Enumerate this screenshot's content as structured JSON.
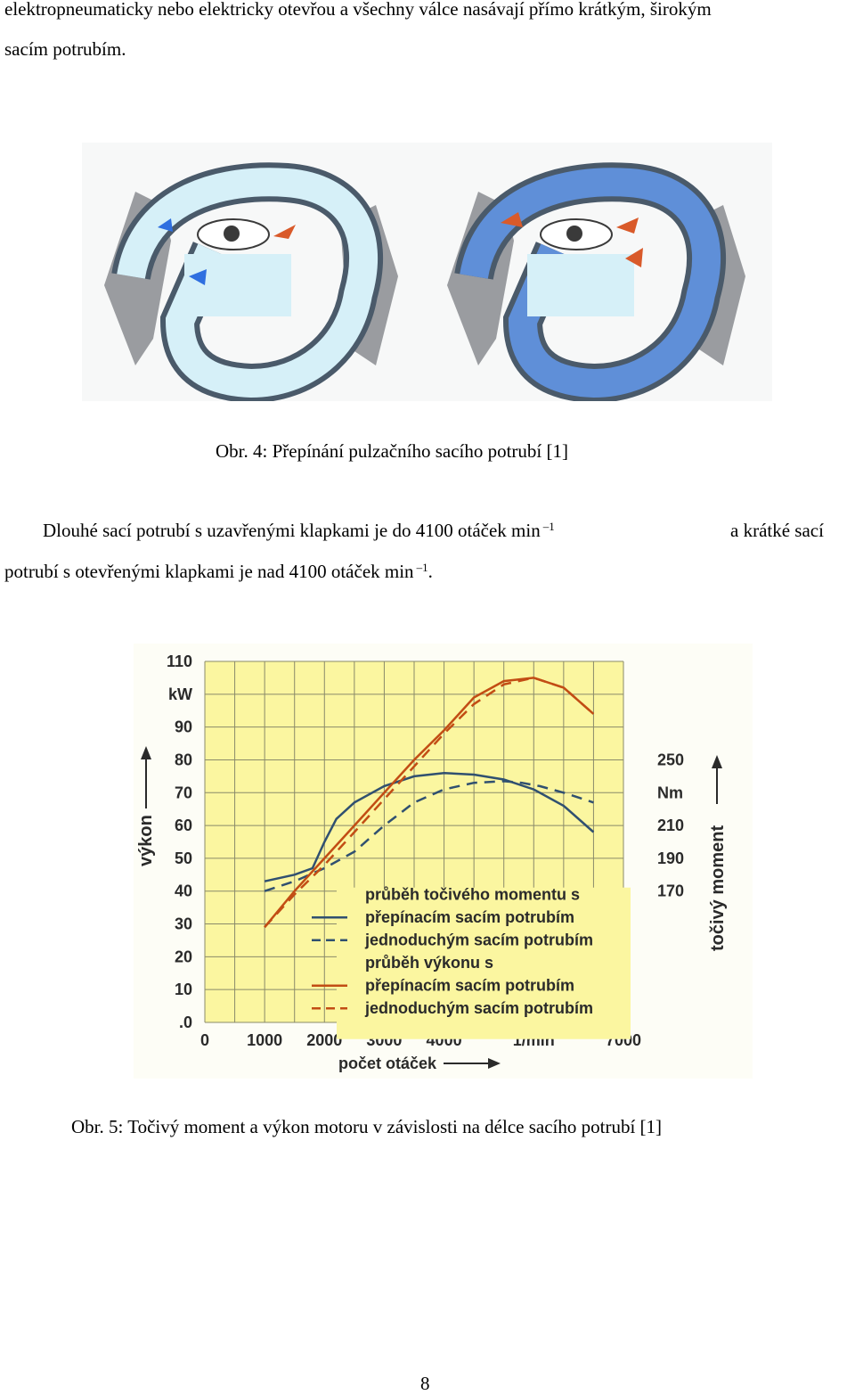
{
  "text": {
    "intro_line1": "elektropneumaticky nebo elektricky otevřou a všechny válce nasávají přímo krátkým, širokým",
    "intro_line2": "sacím potrubím.",
    "caption4": "Obr. 4: Přepínání pulzačního sacího potrubí [1]",
    "para_line1_a": "Dlouhé sací potrubí s uzavřenými klapkami je do 4100 otáček min",
    "para_line1_sup": "–1",
    "para_line1_b": "a krátké sací",
    "para_line2_a": "potrubí s otevřenými klapkami je nad 4100 otáček min",
    "para_line2_sup": "–1",
    "para_line2_b": ".",
    "caption5": "Obr. 5: Točivý moment a výkon motoru v závislosti na délce sacího potrubí [1]",
    "page_number": "8"
  },
  "colors": {
    "chart_bg": "#fbf6a0",
    "grid": "#8a8a6a",
    "torque_curve": "#305070",
    "power_curve": "#c24d14",
    "pipe_fill": "#d6f0f8",
    "pipe_dark_fill": "#5f8fd8",
    "engine_grey": "#9a9ca0"
  },
  "chart_data": {
    "type": "line",
    "title": "",
    "xlabel": "počet otáček",
    "x_unit": "1/min",
    "x_ticks": [
      "0",
      "1000",
      "2000",
      "3000",
      "4000",
      "1/min",
      "7000"
    ],
    "xlim": [
      0,
      7000
    ],
    "ylabel_left": "výkon",
    "ylabel_left_unit": "kW",
    "y_ticks_left": [
      "110",
      "kW",
      "90",
      "80",
      "70",
      "60",
      "50",
      "40",
      "30",
      "20",
      "10",
      ".0"
    ],
    "ylim_left": [
      0,
      110
    ],
    "ylabel_right": "točivý moment",
    "ylabel_right_unit": "Nm",
    "y_ticks_right": [
      "250",
      "Nm",
      "210",
      "190",
      "170"
    ],
    "grid": true,
    "legend_position": "lower-right",
    "legend": [
      {
        "label": "průběh točivého momentu s",
        "style": "none"
      },
      {
        "label": "přepínacím sacím potrubím",
        "style": "solid",
        "color": "#305070"
      },
      {
        "label": "jednoduchým sacím potrubím",
        "style": "dashed",
        "color": "#305070"
      },
      {
        "label": "průběh výkonu s",
        "style": "none"
      },
      {
        "label": "přepínacím sacím potrubím",
        "style": "solid",
        "color": "#c24d14"
      },
      {
        "label": "jednoduchým sacím potrubím",
        "style": "dashed",
        "color": "#c24d14"
      }
    ],
    "series": [
      {
        "color": "#305070",
        "dash": false,
        "x": [
          1000,
          1500,
          1800,
          2000,
          2200,
          2500,
          3000,
          3500,
          4000,
          4500,
          5000,
          5500,
          6000,
          6500
        ],
        "y": [
          43,
          45,
          47,
          55,
          62,
          67,
          72,
          75,
          76,
          75.5,
          74,
          71,
          66,
          58
        ]
      },
      {
        "color": "#305070",
        "dash": true,
        "x": [
          1000,
          1500,
          2000,
          2500,
          3000,
          3500,
          4000,
          4500,
          5000,
          5300,
          5600,
          6000,
          6500
        ],
        "y": [
          40,
          43,
          47,
          52,
          60,
          67,
          71,
          73,
          73.5,
          73,
          72,
          70,
          67
        ]
      },
      {
        "color": "#c24d14",
        "dash": false,
        "x": [
          1000,
          1500,
          2000,
          2500,
          3000,
          3500,
          4000,
          4500,
          5000,
          5500,
          6000,
          6500
        ],
        "y": [
          29,
          40,
          50,
          60,
          70,
          80,
          89,
          99,
          104,
          105,
          102,
          94
        ]
      },
      {
        "color": "#c24d14",
        "dash": true,
        "x": [
          1000,
          1500,
          2000,
          2500,
          3000,
          3500,
          4000,
          4500,
          5000,
          5500,
          6000,
          6500
        ],
        "y": [
          29,
          39,
          48,
          58,
          68,
          78,
          88,
          97,
          103,
          105,
          102,
          94
        ]
      }
    ]
  }
}
